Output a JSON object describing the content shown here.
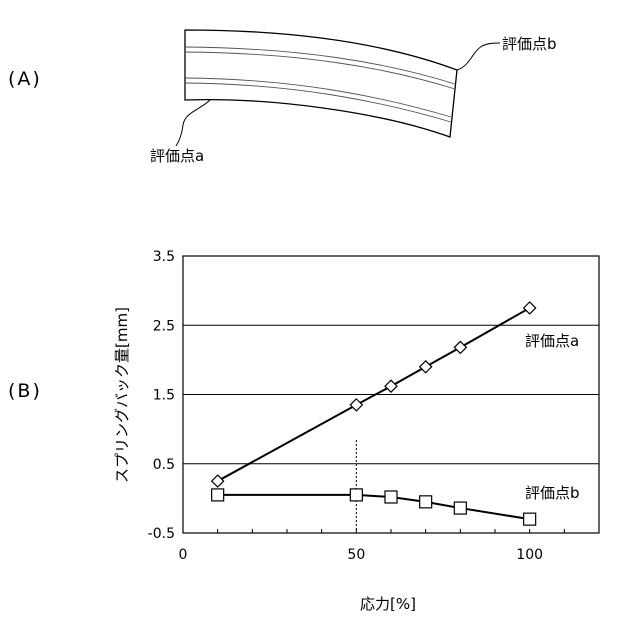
{
  "panels": {
    "a_label": "(A)",
    "b_label": "(B)"
  },
  "figure_a": {
    "point_a": "評価点a",
    "point_b": "評価点b"
  },
  "chart_data": {
    "type": "line",
    "xlabel": "応力[%]",
    "ylabel": "スプリングバック量[mm]",
    "xlim": [
      0,
      120
    ],
    "ylim": [
      -0.5,
      3.5
    ],
    "xticks": [
      0,
      50,
      100
    ],
    "yticks": [
      -0.5,
      0.5,
      1.5,
      2.5,
      3.5
    ],
    "ytick_labels": [
      "-0.5",
      "0.5",
      "1.5",
      "2.5",
      "3.5"
    ],
    "grid": "horizontal",
    "reference_line_x": 50,
    "series": [
      {
        "name": "評価点a",
        "marker": "diamond",
        "x": [
          10,
          50,
          60,
          70,
          80,
          100
        ],
        "y": [
          0.25,
          1.35,
          1.62,
          1.9,
          2.18,
          2.75
        ]
      },
      {
        "name": "評価点b",
        "marker": "square",
        "x": [
          10,
          50,
          60,
          70,
          80,
          100
        ],
        "y": [
          0.05,
          0.05,
          0.02,
          -0.05,
          -0.14,
          -0.3
        ]
      }
    ]
  }
}
